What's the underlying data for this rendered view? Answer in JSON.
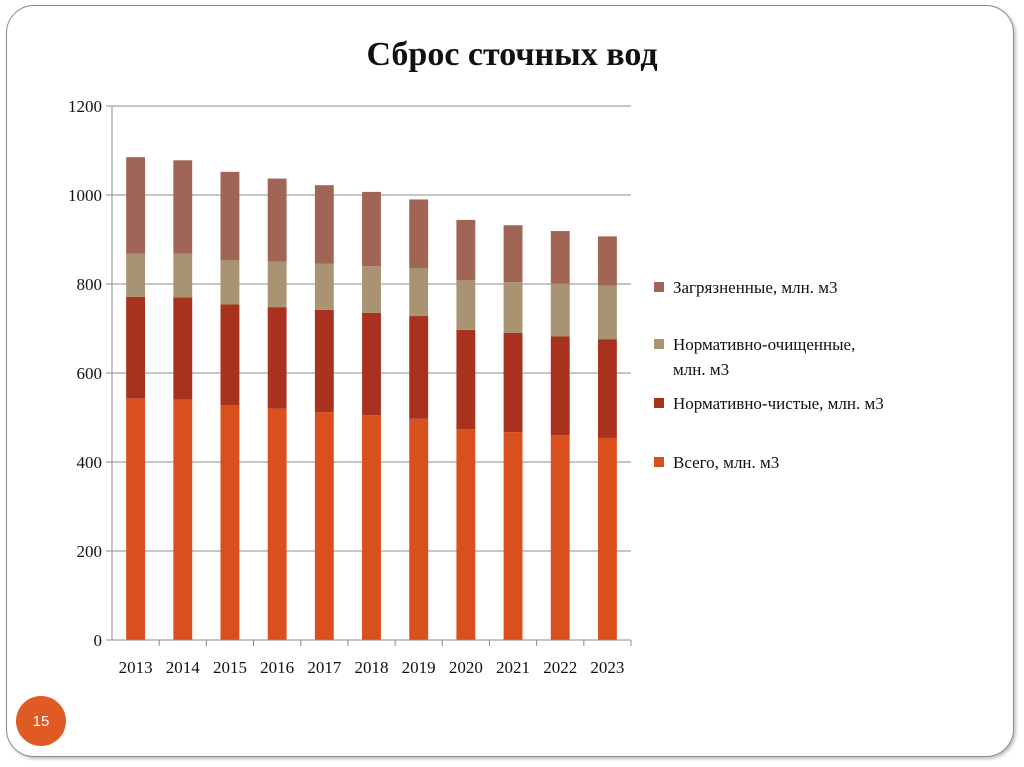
{
  "slide": {
    "title": "Сброс сточных вод",
    "page_number": "15"
  },
  "chart_data": {
    "type": "bar",
    "stacked": true,
    "title": "",
    "xlabel": "",
    "ylabel": "",
    "ylim": [
      0,
      1200
    ],
    "yticks": [
      0,
      200,
      400,
      600,
      800,
      1000,
      1200
    ],
    "grid": true,
    "legend_position": "right",
    "categories": [
      "2013",
      "2014",
      "2015",
      "2016",
      "2017",
      "2018",
      "2019",
      "2020",
      "2021",
      "2022",
      "2023"
    ],
    "series": [
      {
        "name": "Всего, млн. м3",
        "color": "#d9501e",
        "values": [
          543,
          540,
          528,
          520,
          512,
          505,
          497,
          474,
          467,
          460,
          454
        ]
      },
      {
        "name": "Нормативно-чистые, млн. м3",
        "color": "#a8321e",
        "values": [
          228,
          230,
          226,
          228,
          230,
          230,
          231,
          223,
          223,
          222,
          222
        ]
      },
      {
        "name": "Нормативно-очищенные, млн. м3",
        "color": "#a89372",
        "values": [
          97,
          98,
          100,
          102,
          104,
          105,
          108,
          112,
          114,
          119,
          120
        ]
      },
      {
        "name": "Загрязненные, млн. м3",
        "color": "#a06555",
        "values": [
          217,
          210,
          198,
          187,
          176,
          167,
          154,
          135,
          128,
          118,
          111
        ]
      }
    ]
  }
}
